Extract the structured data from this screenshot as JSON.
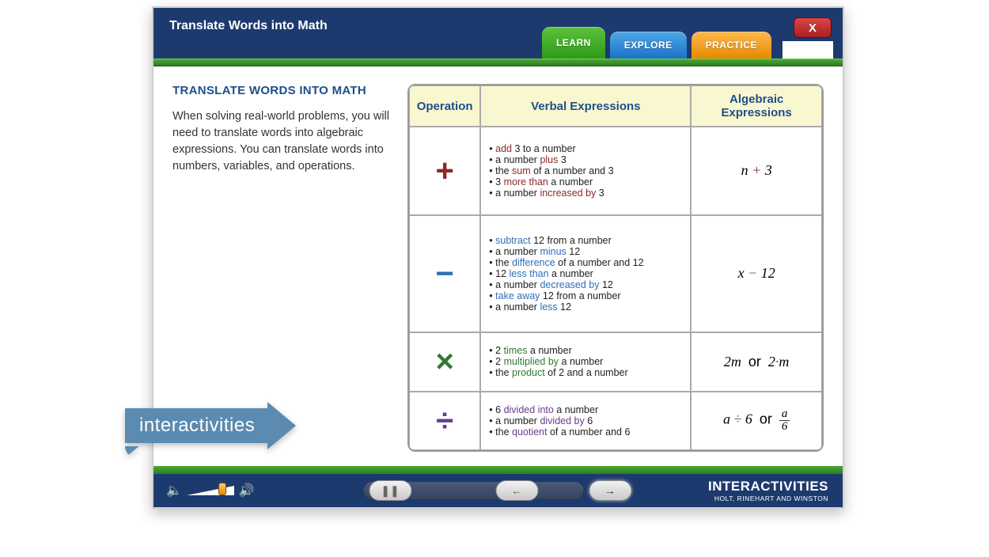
{
  "header": {
    "title": "Translate Words into Math",
    "tabs": {
      "learn": "LEARN",
      "explore": "EXPLORE",
      "practice": "PRACTICE"
    },
    "close": "X"
  },
  "colors": {
    "frame_bg": "#1d3a6e",
    "green_bar": "#3a9628",
    "tab_learn": "#2f9a1c",
    "tab_explore": "#1c72c9",
    "tab_practice": "#e68a00",
    "close_btn": "#a81f1f",
    "heading": "#1d4f8b",
    "table_header_bg": "#f9f7d0",
    "op_add": "#8b2a2a",
    "op_sub": "#2f6fb5",
    "op_mul": "#2f7a2f",
    "op_div": "#6a3c8c",
    "badge_bg": "#5b8bb0"
  },
  "left": {
    "heading": "TRANSLATE WORDS INTO MATH",
    "body": "When solving real-world problems, you will need to translate words into algebraic expressions. You can translate words into numbers, variables, and operations."
  },
  "table": {
    "headers": {
      "op": "Operation",
      "verbal": "Verbal Expressions",
      "alg": "Algebraic Expressions"
    },
    "rows": [
      {
        "symbol": "+",
        "color": "#8b2a2a",
        "verbal": [
          [
            {
              "t": "• "
            },
            {
              "t": "add",
              "c": "#8b2a2a"
            },
            {
              "t": " 3 to a number"
            }
          ],
          [
            {
              "t": "• a number "
            },
            {
              "t": "plus",
              "c": "#8b2a2a"
            },
            {
              "t": " 3"
            }
          ],
          [
            {
              "t": "• the "
            },
            {
              "t": "sum",
              "c": "#8b2a2a"
            },
            {
              "t": " of a number and 3"
            }
          ],
          [
            {
              "t": "• 3 "
            },
            {
              "t": "more than",
              "c": "#8b2a2a"
            },
            {
              "t": " a number"
            }
          ],
          [
            {
              "t": "• a number "
            },
            {
              "t": "increased by",
              "c": "#8b2a2a"
            },
            {
              "t": " 3"
            }
          ]
        ],
        "alg_html": "<i>n</i> <span style='color:#8b2a2a'>+</span> 3"
      },
      {
        "symbol": "−",
        "color": "#2f6fb5",
        "verbal": [
          [
            {
              "t": "• "
            },
            {
              "t": "subtract",
              "c": "#2f6fb5"
            },
            {
              "t": " 12 from a number"
            }
          ],
          [
            {
              "t": "• a number "
            },
            {
              "t": "minus",
              "c": "#2f6fb5"
            },
            {
              "t": " 12"
            }
          ],
          [
            {
              "t": "• the "
            },
            {
              "t": "difference",
              "c": "#2f6fb5"
            },
            {
              "t": " of a number and 12"
            }
          ],
          [
            {
              "t": "• 12 "
            },
            {
              "t": "less than",
              "c": "#2f6fb5"
            },
            {
              "t": " a number"
            }
          ],
          [
            {
              "t": "• a number "
            },
            {
              "t": "decreased by",
              "c": "#2f6fb5"
            },
            {
              "t": " 12"
            }
          ],
          [
            {
              "t": "• "
            },
            {
              "t": "take away",
              "c": "#2f6fb5"
            },
            {
              "t": " 12 from a number"
            }
          ],
          [
            {
              "t": "• a number "
            },
            {
              "t": "less",
              "c": "#2f6fb5"
            },
            {
              "t": " 12"
            }
          ]
        ],
        "alg_html": "<i>x</i> <span style='color:#2f6fb5'>−</span> 12"
      },
      {
        "symbol": "×",
        "color": "#2f7a2f",
        "verbal": [
          [
            {
              "t": "• 2 "
            },
            {
              "t": "times",
              "c": "#2f7a2f"
            },
            {
              "t": " a number"
            }
          ],
          [
            {
              "t": "• 2 "
            },
            {
              "t": "multiplied by",
              "c": "#2f7a2f"
            },
            {
              "t": " a number"
            }
          ],
          [
            {
              "t": "• the "
            },
            {
              "t": "product",
              "c": "#2f7a2f"
            },
            {
              "t": " of 2 and a number"
            }
          ]
        ],
        "alg_html": "2<i>m</i> &nbsp;<span class='normal'>or</span>&nbsp; 2<span style='color:#2f7a2f'>&middot;</span><i>m</i>"
      },
      {
        "symbol": "÷",
        "color": "#6a3c8c",
        "verbal": [
          [
            {
              "t": "• 6 "
            },
            {
              "t": "divided into",
              "c": "#6a3c8c"
            },
            {
              "t": " a number"
            }
          ],
          [
            {
              "t": "• a number "
            },
            {
              "t": "divided by",
              "c": "#6a3c8c"
            },
            {
              "t": " 6"
            }
          ],
          [
            {
              "t": "• the "
            },
            {
              "t": "quotient",
              "c": "#6a3c8c"
            },
            {
              "t": " of a number and 6"
            }
          ]
        ],
        "alg_html": "<i>a</i> <span style='color:#6a3c8c'>÷</span> 6 &nbsp;<span class='normal'>or</span>&nbsp; <span class='frac'><span class='num'><i>a</i></span><span class='den'>6</span></span>"
      }
    ]
  },
  "footer": {
    "brand_big": "INTERACTIVITIES",
    "brand_small": "HOLT, RINEHART AND WINSTON"
  },
  "badge": {
    "label": "interactivities"
  }
}
